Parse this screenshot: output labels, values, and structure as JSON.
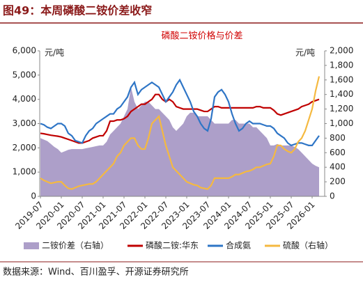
{
  "header": {
    "title": "图49：本周磷酸二铵价差收窄"
  },
  "chart_data": {
    "type": "combo",
    "title": "磷酸二铵价格与价差",
    "ylabel": "元/吨",
    "y2label": "元/吨",
    "x": [
      "2019-07",
      "2019-08",
      "2019-09",
      "2019-10",
      "2019-11",
      "2019-12",
      "2020-01",
      "2020-02",
      "2020-03",
      "2020-04",
      "2020-05",
      "2020-06",
      "2020-07",
      "2020-08",
      "2020-09",
      "2020-10",
      "2020-11",
      "2020-12",
      "2021-01",
      "2021-02",
      "2021-03",
      "2021-04",
      "2021-05",
      "2021-06",
      "2021-07",
      "2021-08",
      "2021-09",
      "2021-10",
      "2021-11",
      "2021-12",
      "2022-01",
      "2022-02",
      "2022-03",
      "2022-04",
      "2022-05",
      "2022-06",
      "2022-07",
      "2022-08",
      "2022-09",
      "2022-10",
      "2022-11",
      "2022-12",
      "2023-01",
      "2023-02",
      "2023-03",
      "2023-04",
      "2023-05",
      "2023-06",
      "2023-07",
      "2023-08",
      "2023-09",
      "2023-10",
      "2023-11",
      "2023-12",
      "2024-01",
      "2024-02",
      "2024-03",
      "2024-04",
      "2024-05",
      "2024-06",
      "2024-07",
      "2024-08",
      "2024-09",
      "2024-10",
      "2024-11",
      "2024-12",
      "2025-01",
      "2025-02",
      "2025-03",
      "2025-04",
      "2025-05",
      "2025-06",
      "2025-07",
      "2025-08",
      "2025-09",
      "2025-10",
      "2025-11",
      "2025-12",
      "2026-01",
      "2026-02",
      "2026-03"
    ],
    "x_tick_every": 6,
    "ylim": [
      0,
      6000
    ],
    "yticks": [
      0,
      {
        "value": 1000,
        "label": "1,000"
      },
      {
        "value": 2000,
        "label": "2,000"
      },
      {
        "value": 3000,
        "label": "3,000"
      },
      {
        "value": 4000,
        "label": "4,000"
      },
      {
        "value": 5000,
        "label": "5,000"
      },
      {
        "value": 6000,
        "label": "6,000"
      }
    ],
    "y2lim": [
      0,
      2000
    ],
    "y2ticks": [
      0,
      200,
      400,
      600,
      800,
      {
        "value": 1000,
        "label": "1,000"
      },
      {
        "value": 1200,
        "label": "1,200"
      },
      {
        "value": 1400,
        "label": "1,400"
      },
      {
        "value": 1600,
        "label": "1,600"
      },
      {
        "value": 1800,
        "label": "1,800"
      },
      {
        "value": 2000,
        "label": "2,000"
      }
    ],
    "series": [
      {
        "name": "二铵价差（右轴）",
        "type": "area",
        "axis": "y2",
        "color": "#ad9fc9",
        "values": [
          800,
          780,
          760,
          720,
          680,
          650,
          600,
          620,
          640,
          650,
          650,
          650,
          650,
          660,
          670,
          680,
          690,
          700,
          700,
          750,
          850,
          900,
          950,
          1000,
          1100,
          1200,
          1500,
          1300,
          1200,
          1250,
          1300,
          1300,
          1250,
          1200,
          1200,
          1150,
          1100,
          1050,
          950,
          900,
          950,
          1000,
          1100,
          1150,
          1150,
          1100,
          1100,
          1100,
          1100,
          1050,
          1000,
          1000,
          1000,
          1000,
          1000,
          1050,
          1050,
          1000,
          1000,
          1000,
          1000,
          950,
          950,
          900,
          850,
          800,
          700,
          700,
          720,
          700,
          700,
          700,
          700,
          680,
          650,
          600,
          550,
          500,
          450,
          420,
          400
        ]
      },
      {
        "name": "磷酸二铵:华东",
        "type": "line",
        "axis": "y",
        "color": "#c00000",
        "values": [
          2600,
          2580,
          2550,
          2520,
          2500,
          2480,
          2450,
          2400,
          2350,
          2300,
          2250,
          2200,
          2200,
          2250,
          2300,
          2400,
          2450,
          2500,
          2500,
          2700,
          3100,
          3100,
          3150,
          3150,
          3200,
          3300,
          3500,
          3600,
          3700,
          3800,
          3800,
          3900,
          4000,
          4200,
          4200,
          4000,
          3900,
          4000,
          3900,
          3700,
          3650,
          3600,
          3600,
          3600,
          3600,
          3600,
          3550,
          3500,
          3500,
          3600,
          3700,
          3700,
          3650,
          3650,
          3650,
          3650,
          3650,
          3650,
          3650,
          3650,
          3650,
          3650,
          3700,
          3700,
          3650,
          3650,
          3650,
          3550,
          3400,
          3350,
          3400,
          3450,
          3500,
          3550,
          3600,
          3700,
          3750,
          3800,
          3900,
          3950,
          4000
        ]
      },
      {
        "name": "合成氨",
        "type": "line",
        "axis": "y",
        "color": "#2e75c6",
        "values": [
          3000,
          2950,
          2850,
          2800,
          2900,
          3000,
          3000,
          2900,
          2600,
          2500,
          2300,
          2250,
          2200,
          2500,
          2700,
          2800,
          3000,
          3100,
          3200,
          3300,
          3400,
          3400,
          3600,
          3700,
          3900,
          4100,
          4500,
          4700,
          4200,
          4400,
          4500,
          4600,
          4700,
          4600,
          4500,
          4200,
          3900,
          4100,
          4300,
          4600,
          4800,
          4500,
          4200,
          3900,
          3500,
          3300,
          3000,
          2800,
          2700,
          3200,
          4100,
          4300,
          4400,
          4200,
          3900,
          3400,
          3000,
          2700,
          2800,
          3000,
          3100,
          3000,
          3000,
          3000,
          2950,
          2900,
          2900,
          2800,
          2600,
          2500,
          2400,
          2200,
          2100,
          2150,
          2200,
          2200,
          2150,
          2100,
          2100,
          2300,
          2500
        ]
      },
      {
        "name": "硫酸（右轴）",
        "type": "line",
        "axis": "y2",
        "color": "#f5b940",
        "values": [
          250,
          220,
          200,
          180,
          190,
          200,
          200,
          150,
          110,
          100,
          120,
          140,
          150,
          160,
          170,
          170,
          200,
          250,
          300,
          350,
          400,
          450,
          550,
          600,
          700,
          750,
          800,
          800,
          700,
          650,
          650,
          800,
          1000,
          1050,
          1100,
          900,
          700,
          550,
          400,
          350,
          300,
          250,
          200,
          180,
          160,
          150,
          120,
          110,
          100,
          150,
          250,
          250,
          250,
          250,
          250,
          270,
          300,
          300,
          320,
          340,
          350,
          370,
          400,
          400,
          420,
          440,
          450,
          550,
          700,
          700,
          650,
          620,
          600,
          650,
          750,
          800,
          900,
          1050,
          1200,
          1450,
          1650
        ]
      }
    ]
  },
  "source": "数据来源：Wind、百川盈孚、开源证券研究所"
}
